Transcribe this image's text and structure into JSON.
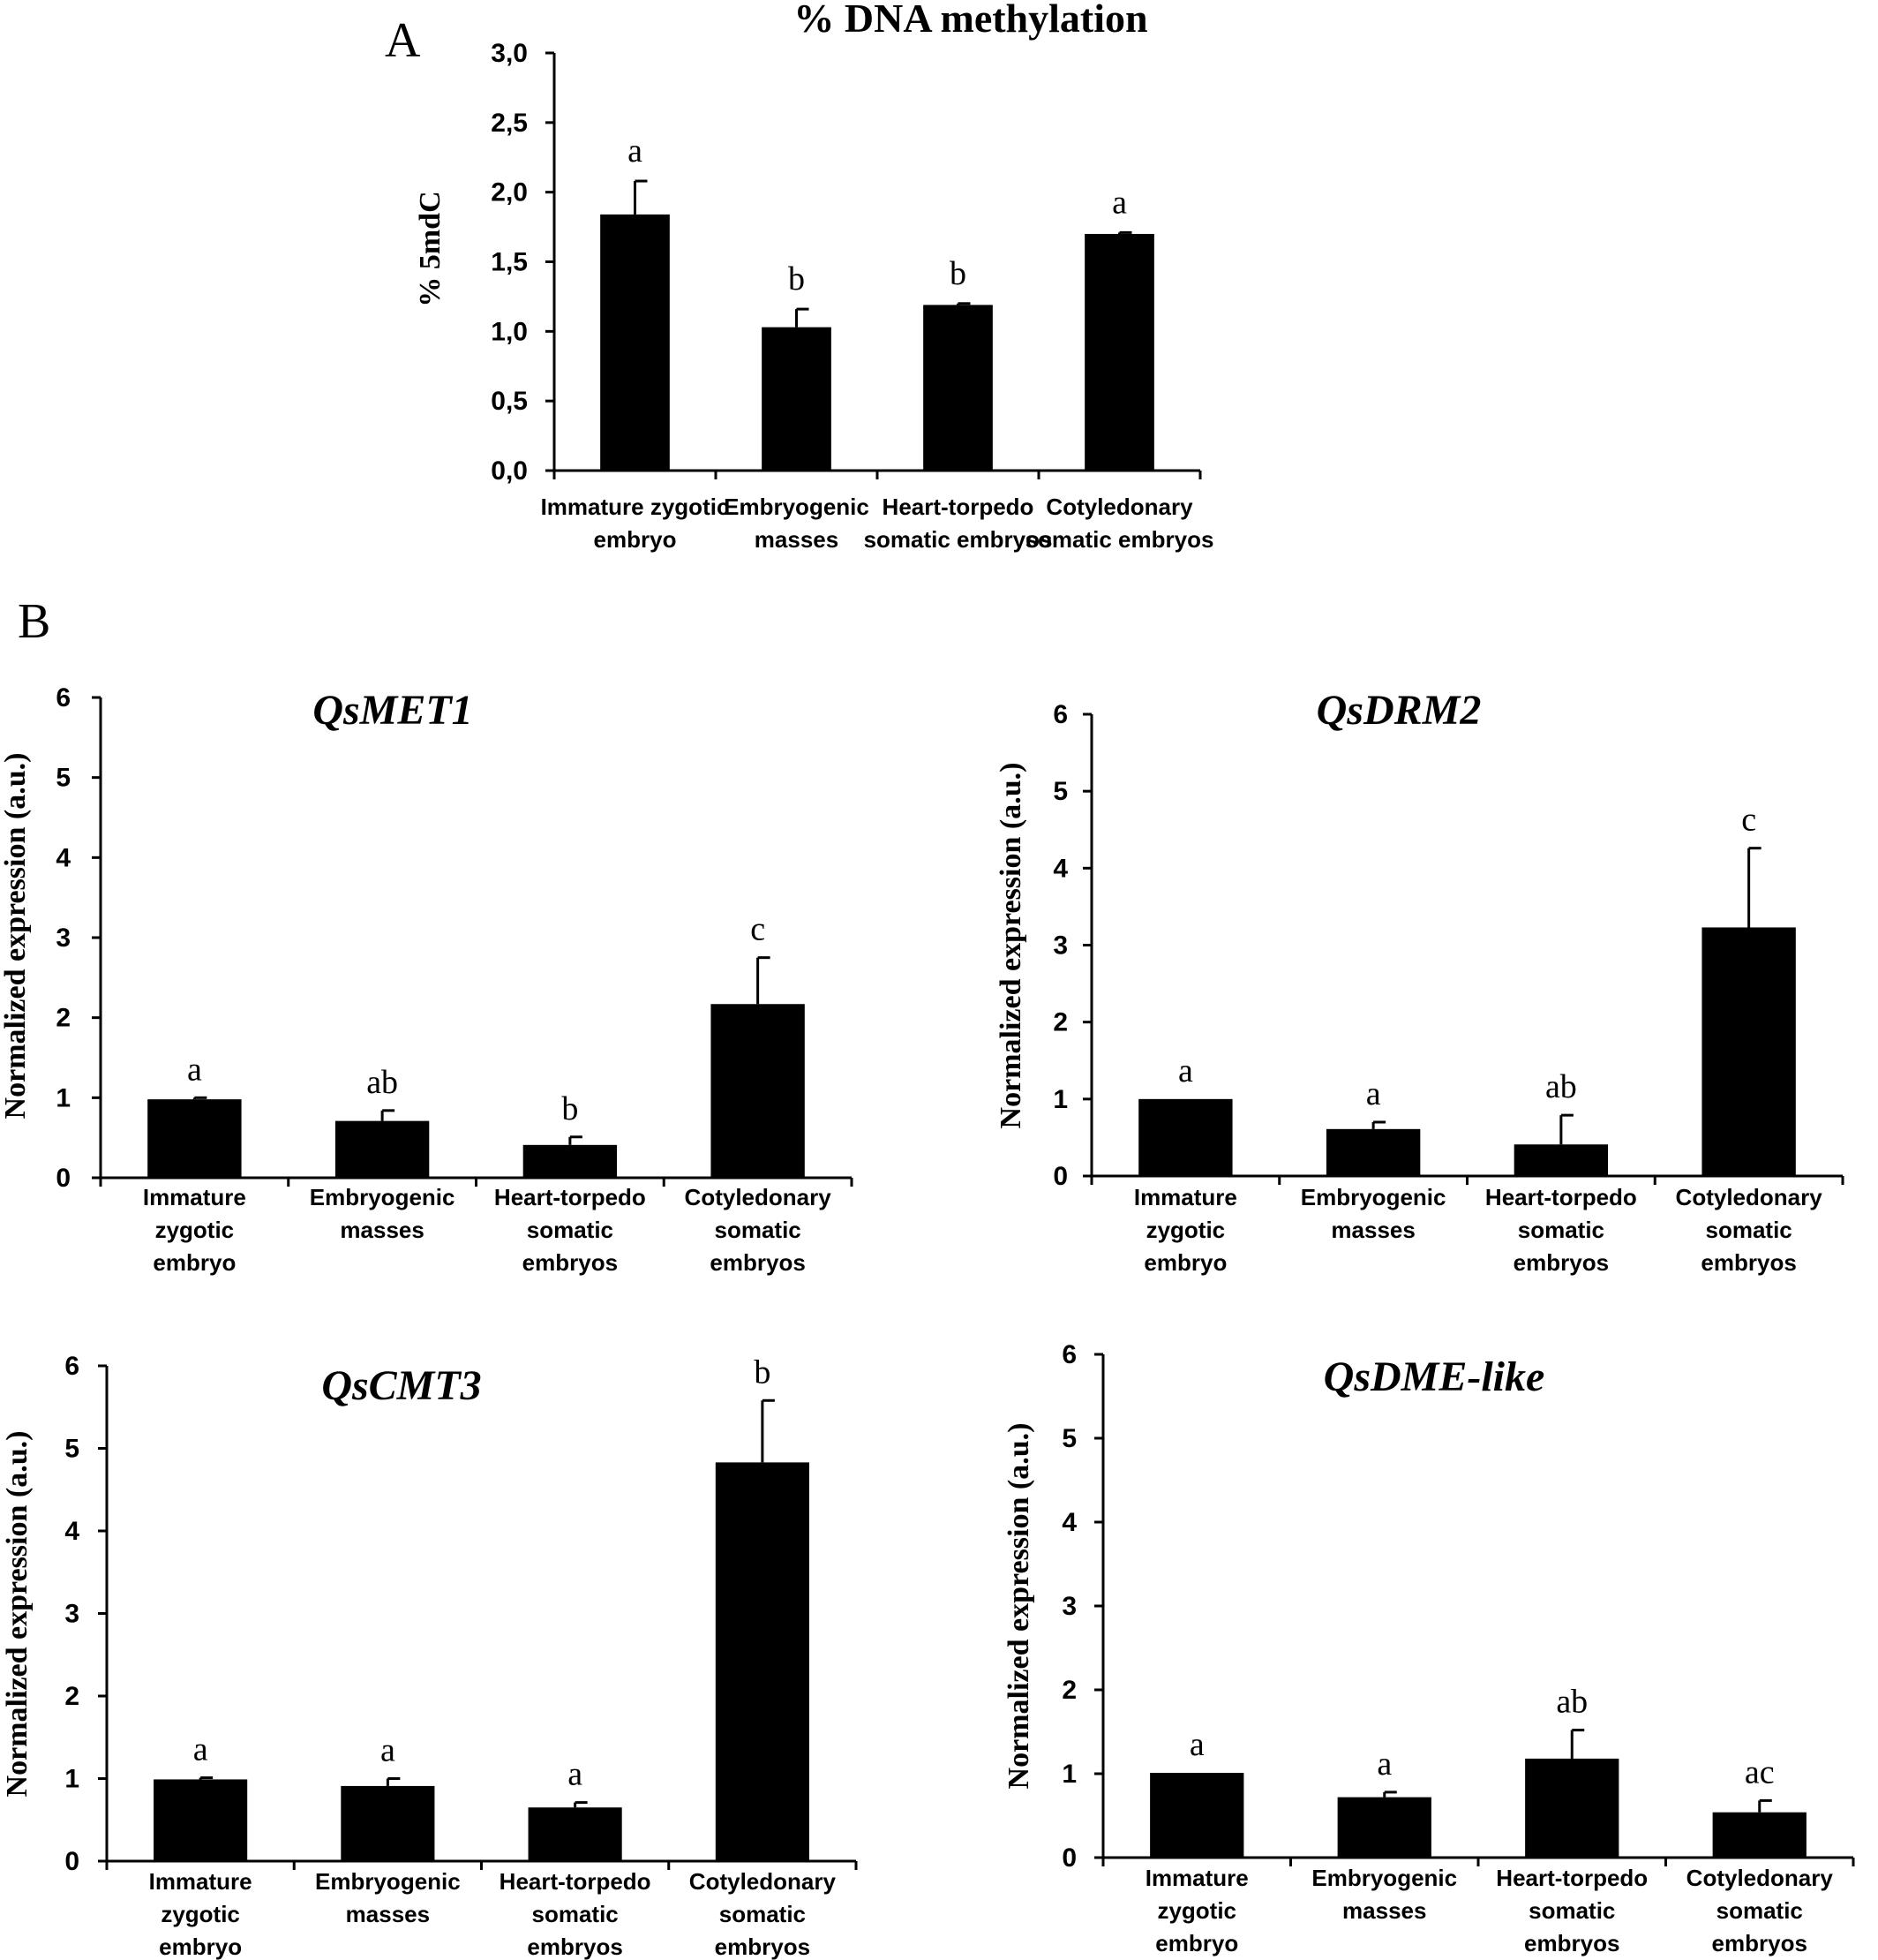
{
  "figure": {
    "panel_a_label": "A",
    "panel_b_label": "B"
  },
  "chart_data": [
    {
      "id": "A",
      "type": "bar",
      "title": "% DNA methylation",
      "ylabel": "% 5mdC",
      "xlabel": "",
      "ylim": [
        0,
        3
      ],
      "yticks": [
        0,
        0.5,
        1,
        1.5,
        2,
        2.5,
        3
      ],
      "ytick_labels": [
        "0,0",
        "0,5",
        "1,0",
        "1,5",
        "2,0",
        "2,5",
        "3,0"
      ],
      "categories": [
        [
          "Immature zygotic",
          "embryo"
        ],
        [
          "Embryogenic",
          "masses"
        ],
        [
          "Heart-torpedo",
          "somatic embryos"
        ],
        [
          "Cotyledonary",
          "somatic embryos"
        ]
      ],
      "values": [
        1.84,
        1.03,
        1.19,
        1.7
      ],
      "errors": [
        0.24,
        0.13,
        0.01,
        0.01
      ],
      "significance": [
        "a",
        "b",
        "b",
        "a"
      ],
      "grid": false,
      "legend": "none"
    },
    {
      "id": "QsMET1",
      "type": "bar",
      "title": "QsMET1",
      "ylabel": "Normalized expression (a.u.)",
      "xlabel": "",
      "ylim": [
        0,
        6
      ],
      "yticks": [
        0,
        1,
        2,
        3,
        4,
        5,
        6
      ],
      "ytick_labels": [
        "0",
        "1",
        "2",
        "3",
        "4",
        "5",
        "6"
      ],
      "categories": [
        [
          "Immature",
          "zygotic",
          "embryo"
        ],
        [
          "Embryogenic",
          "masses"
        ],
        [
          "Heart-torpedo",
          "somatic",
          "embryos"
        ],
        [
          "Cotyledonary",
          "somatic",
          "embryos"
        ]
      ],
      "values": [
        0.98,
        0.71,
        0.41,
        2.17
      ],
      "errors": [
        0.02,
        0.13,
        0.1,
        0.58
      ],
      "significance": [
        "a",
        "ab",
        "b",
        "c"
      ],
      "grid": false,
      "legend": "none"
    },
    {
      "id": "QsDRM2",
      "type": "bar",
      "title": "QsDRM2",
      "ylabel": "Normalized expression (a.u.)",
      "xlabel": "",
      "ylim": [
        0,
        6
      ],
      "yticks": [
        0,
        1,
        2,
        3,
        4,
        5,
        6
      ],
      "ytick_labels": [
        "0",
        "1",
        "2",
        "3",
        "4",
        "5",
        "6"
      ],
      "categories": [
        [
          "Immature",
          "zygotic",
          "embryo"
        ],
        [
          "Embryogenic",
          "masses"
        ],
        [
          "Heart-torpedo",
          "somatic",
          "embryos"
        ],
        [
          "Cotyledonary",
          "somatic",
          "embryos"
        ]
      ],
      "values": [
        1.0,
        0.61,
        0.41,
        3.23
      ],
      "errors": [
        0.0,
        0.09,
        0.38,
        1.03
      ],
      "significance": [
        "a",
        "a",
        "ab",
        "c"
      ],
      "grid": false,
      "legend": "none"
    },
    {
      "id": "QsCMT3",
      "type": "bar",
      "title": "QsCMT3",
      "ylabel": "Normalized expression (a.u.)",
      "xlabel": "",
      "ylim": [
        0,
        6
      ],
      "yticks": [
        0,
        1,
        2,
        3,
        4,
        5,
        6
      ],
      "ytick_labels": [
        "0",
        "1",
        "2",
        "3",
        "4",
        "5",
        "6"
      ],
      "categories": [
        [
          "Immature",
          "zygotic",
          "embryo"
        ],
        [
          "Embryogenic",
          "masses"
        ],
        [
          "Heart-torpedo",
          "somatic",
          "embryos"
        ],
        [
          "Cotyledonary",
          "somatic",
          "embryos"
        ]
      ],
      "values": [
        0.99,
        0.91,
        0.65,
        4.83
      ],
      "errors": [
        0.02,
        0.09,
        0.06,
        0.75
      ],
      "significance": [
        "a",
        "a",
        "a",
        "b"
      ],
      "grid": false,
      "legend": "none"
    },
    {
      "id": "QsDME-like",
      "type": "bar",
      "title": "QsDME-like",
      "ylabel": "Normalized expression (a.u.)",
      "xlabel": "",
      "ylim": [
        0,
        6
      ],
      "yticks": [
        0,
        1,
        2,
        3,
        4,
        5,
        6
      ],
      "ytick_labels": [
        "0",
        "1",
        "2",
        "3",
        "4",
        "5",
        "6"
      ],
      "categories": [
        [
          "Immature",
          "zygotic",
          "embryo"
        ],
        [
          "Embryogenic",
          "masses"
        ],
        [
          "Heart-torpedo",
          "somatic",
          "embryos"
        ],
        [
          "Cotyledonary",
          "somatic",
          "embryos"
        ]
      ],
      "values": [
        1.01,
        0.72,
        1.18,
        0.54
      ],
      "errors": [
        0.0,
        0.06,
        0.34,
        0.14
      ],
      "significance": [
        "a",
        "a",
        "ab",
        "ac"
      ],
      "grid": false,
      "legend": "none"
    }
  ]
}
